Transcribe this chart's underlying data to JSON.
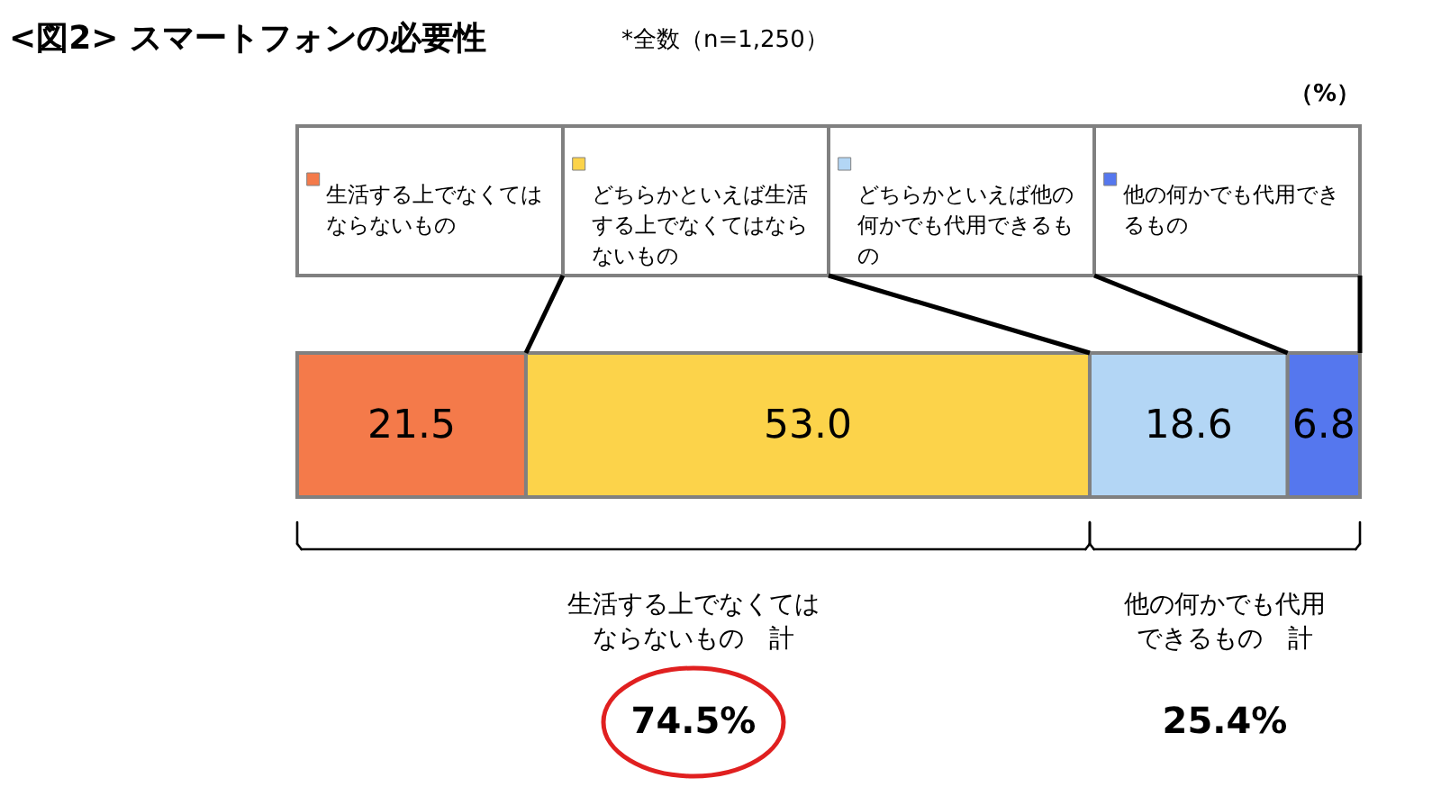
{
  "chart_data": {
    "type": "bar",
    "orientation": "horizontal",
    "stacked": true,
    "data_labels": true,
    "legend": "top",
    "title": "<図2> スマートフォンの必要性",
    "subtitle": "*全数（n=1,250）",
    "categories": [
      null
    ],
    "series": [
      {
        "name": "生活する上でなくてはならないもの",
        "color": "#f47a4a",
        "values": [
          21.5
        ],
        "value_labels": [
          "21.5"
        ]
      },
      {
        "name": "どちらかといえば生活する上でなくてはならないもの",
        "color": "#fcd34a",
        "values": [
          53.0
        ],
        "value_labels": [
          "53.0"
        ]
      },
      {
        "name": "どちらかといえば他の何かでも代用できるもの",
        "color": "#b3d6f5",
        "values": [
          18.6
        ],
        "value_labels": [
          "18.6"
        ]
      },
      {
        "name": "他の何かでも代用できるもの",
        "color": "#5577ee",
        "values": [
          6.8
        ],
        "value_labels": [
          "6.8"
        ]
      }
    ],
    "annotations": [
      "（%）",
      "生活する上でなくてはならないもの　計",
      "74.5%",
      "他の何かでも代用できるもの　計",
      "25.4%"
    ]
  }
}
